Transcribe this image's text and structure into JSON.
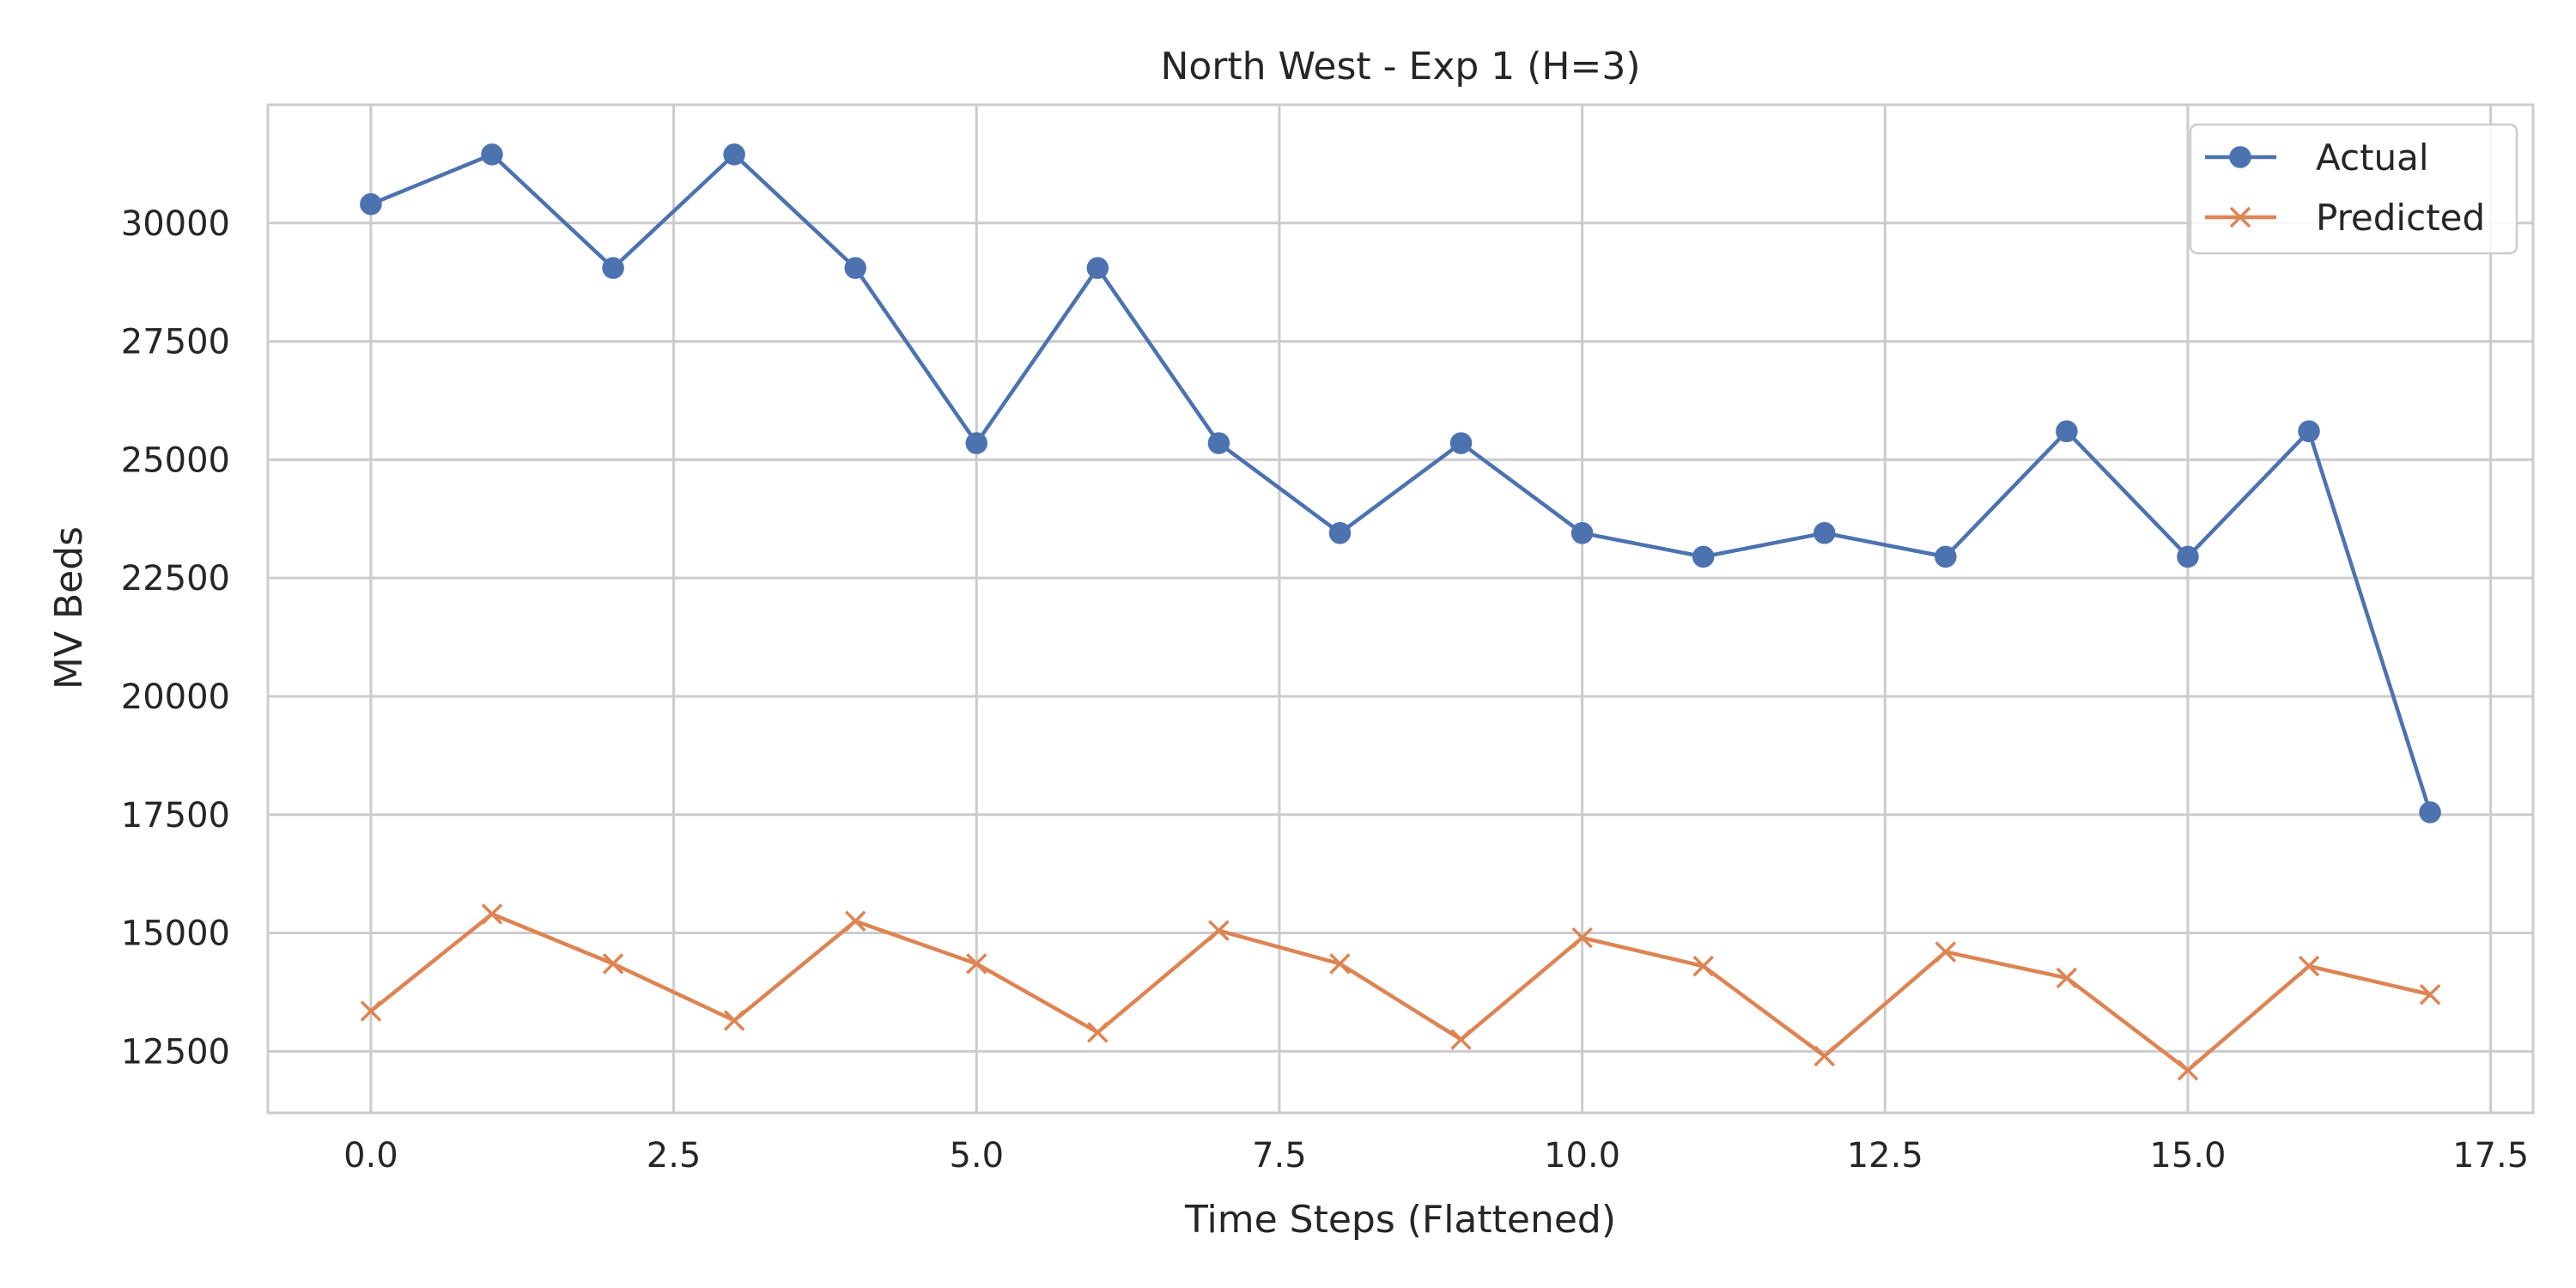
{
  "chart_data": {
    "type": "line",
    "title": "North West - Exp 1 (H=3)",
    "xlabel": "Time Steps (Flattened)",
    "ylabel": "MV Beds",
    "xlim": [
      -0.85,
      17.85
    ],
    "ylim": [
      11200,
      32500
    ],
    "xticks": [
      0.0,
      2.5,
      5.0,
      7.5,
      10.0,
      12.5,
      15.0,
      17.5
    ],
    "xtick_labels": [
      "0.0",
      "2.5",
      "5.0",
      "7.5",
      "10.0",
      "12.5",
      "15.0",
      "17.5"
    ],
    "yticks": [
      12500,
      15000,
      17500,
      20000,
      22500,
      25000,
      27500,
      30000
    ],
    "ytick_labels": [
      "12500",
      "15000",
      "17500",
      "20000",
      "22500",
      "25000",
      "27500",
      "30000"
    ],
    "grid": true,
    "legend_position": "top-right",
    "x": [
      0,
      1,
      2,
      3,
      4,
      5,
      6,
      7,
      8,
      9,
      10,
      11,
      12,
      13,
      14,
      15,
      16,
      17
    ],
    "series": [
      {
        "name": "Actual",
        "color": "#4c72b0",
        "marker": "circle",
        "values": [
          30400,
          31450,
          29050,
          31450,
          29050,
          25350,
          29050,
          25350,
          23450,
          25350,
          23450,
          22950,
          23450,
          22950,
          25600,
          22950,
          25600,
          17550
        ]
      },
      {
        "name": "Predicted",
        "color": "#dd8452",
        "marker": "x",
        "values": [
          13350,
          15400,
          14350,
          13150,
          15250,
          14350,
          12900,
          15050,
          14350,
          12750,
          14900,
          14300,
          12400,
          14600,
          14050,
          12100,
          14300,
          13700
        ]
      }
    ]
  }
}
